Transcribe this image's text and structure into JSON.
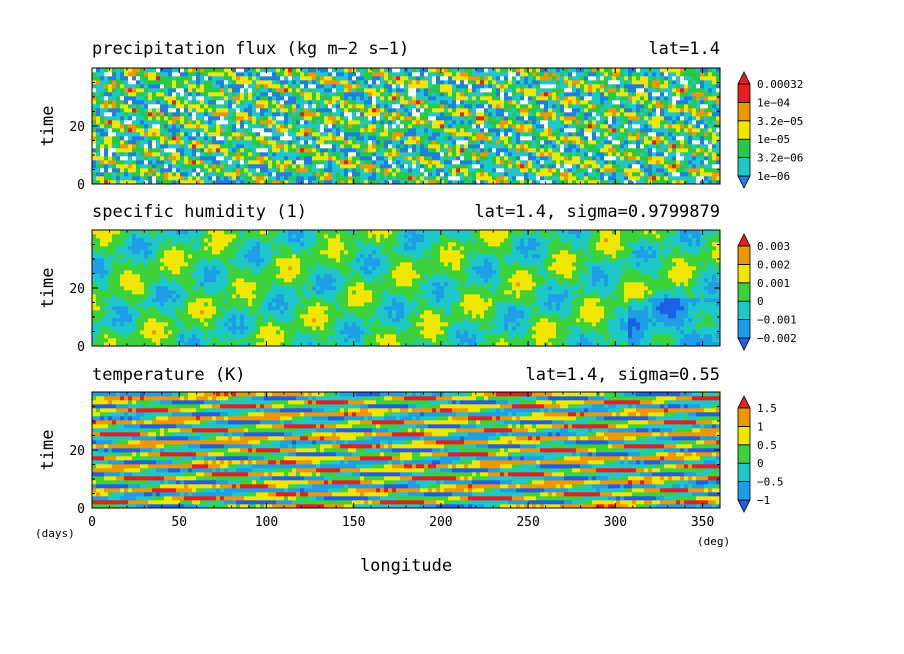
{
  "figure": {
    "x_axis_label": "longitude",
    "x_unit": "(deg)",
    "y_unit": "(days)"
  },
  "chart_data": [
    {
      "type": "heatmap",
      "title": "precipitation flux (kg m−2 s−1)",
      "subtitle": "lat=1.4",
      "xlabel": "longitude",
      "ylabel": "time",
      "xlim": [
        0,
        360
      ],
      "ylim": [
        0,
        40
      ],
      "xticks": [
        0,
        50,
        100,
        150,
        200,
        250,
        300,
        350
      ],
      "yticks": [
        0,
        20
      ],
      "colorbar": {
        "labels": [
          "1e−06",
          "3.2e−06",
          "1e−05",
          "3.2e−05",
          "1e−04",
          "0.00032"
        ],
        "colors": [
          "#1e7fe0",
          "#1ec8c8",
          "#28c848",
          "#f0e600",
          "#f09600",
          "#e61e1e"
        ]
      },
      "pattern": "noisy",
      "below_range_color": "#ffffff"
    },
    {
      "type": "heatmap",
      "title": "specific humidity (1)",
      "subtitle": "lat=1.4, sigma=0.9799879",
      "xlabel": "longitude",
      "ylabel": "time",
      "xlim": [
        0,
        360
      ],
      "ylim": [
        0,
        40
      ],
      "xticks": [
        0,
        50,
        100,
        150,
        200,
        250,
        300,
        350
      ],
      "yticks": [
        0,
        20
      ],
      "colorbar": {
        "labels": [
          "−0.002",
          "−0.001",
          "0",
          "0.001",
          "0.002",
          "0.003"
        ],
        "colors": [
          "#1e5fe6",
          "#1e9ee6",
          "#1ec8c8",
          "#3cd23c",
          "#f0e600",
          "#f09600",
          "#e61e1e"
        ]
      },
      "pattern": "smooth",
      "below_range_color": "#1e5fe6"
    },
    {
      "type": "heatmap",
      "title": "temperature (K)",
      "subtitle": "lat=1.4, sigma=0.55",
      "xlabel": "longitude",
      "ylabel": "time",
      "xlim": [
        0,
        360
      ],
      "ylim": [
        0,
        40
      ],
      "xticks": [
        0,
        50,
        100,
        150,
        200,
        250,
        300,
        350
      ],
      "yticks": [
        0,
        20
      ],
      "colorbar": {
        "labels": [
          "−1",
          "−0.5",
          "0",
          "0.5",
          "1",
          "1.5"
        ],
        "colors": [
          "#1e5fe6",
          "#1e9ee6",
          "#1ec8c8",
          "#3cd23c",
          "#f0e600",
          "#f09600",
          "#e61e1e"
        ]
      },
      "pattern": "diagonal",
      "below_range_color": "#1e5fe6"
    }
  ]
}
